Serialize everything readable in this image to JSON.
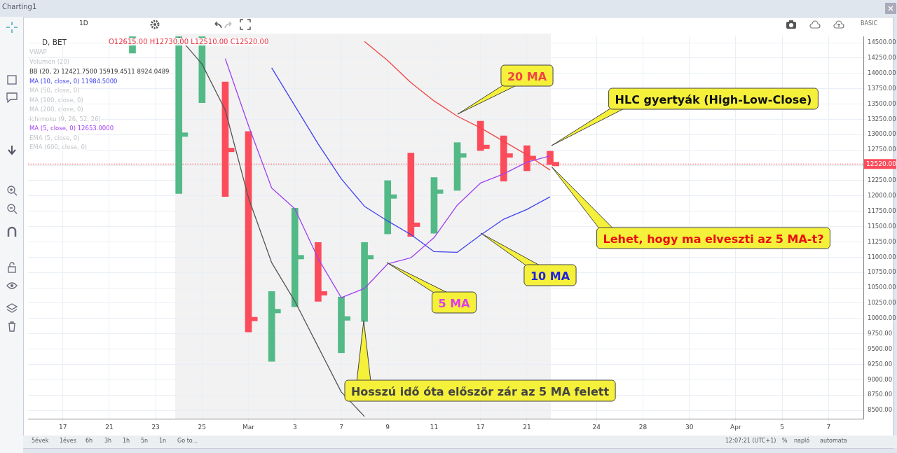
{
  "chart_data": {
    "type": "bar",
    "categories": [
      null,
      "17",
      null,
      "21",
      null,
      "23",
      null,
      "25",
      null,
      "Mar",
      null,
      "3",
      null,
      "7",
      null,
      "9",
      null,
      "11",
      null,
      "17",
      null,
      "21",
      null,
      null,
      "24",
      null,
      "28",
      null,
      "30",
      null,
      "Apr",
      null,
      "5",
      null,
      "7",
      null
    ],
    "series": [
      {
        "type": "bar",
        "base": [
          null,
          null,
          null,
          null,
          14330,
          null,
          12040,
          13520,
          11990,
          9780,
          9300,
          10190,
          10280,
          9440,
          9950,
          11380,
          11340,
          11390,
          12090,
          12740,
          12240,
          12410,
          12510,
          null,
          null,
          null,
          null,
          null,
          null,
          null,
          null,
          null,
          null,
          null,
          null,
          null
        ],
        "values": [
          null,
          null,
          null,
          null,
          272,
          null,
          2562,
          1082,
          1870,
          3270,
          1140,
          1610,
          960,
          910,
          1290,
          870,
          1360,
          910,
          780,
          480,
          740,
          410,
          220,
          null,
          null,
          null,
          null,
          null,
          null,
          null,
          null,
          null,
          null,
          null,
          null,
          null
        ],
        "colors": [
          null,
          null,
          null,
          null,
          "#53b987",
          null,
          "#53b987",
          "#53b987",
          "#fc4c5b",
          "#fc4c5b",
          "#53b987",
          "#53b987",
          "#fc4c5b",
          "#53b987",
          "#53b987",
          "#53b987",
          "#fc4c5b",
          "#53b987",
          "#53b987",
          "#fc4c5b",
          "#fc4c5b",
          "#fc4c5b",
          "#fc4c5b",
          null,
          null,
          null,
          null,
          null,
          null,
          null,
          null,
          null,
          null,
          null,
          null,
          null
        ]
      },
      {
        "type": "scatter",
        "marker": "square",
        "values": [
          null,
          null,
          null,
          null,
          null,
          null,
          13000,
          null,
          12750,
          9990,
          10120,
          11000,
          10410,
          10000,
          11000,
          11990,
          11530,
          12070,
          12660,
          12800,
          12660,
          12620,
          12520,
          null,
          null,
          null,
          null,
          null,
          null,
          null,
          null,
          null,
          null,
          null,
          null,
          null
        ],
        "colors": [
          null,
          null,
          null,
          null,
          null,
          null,
          "#53b987",
          null,
          "#fc4c5b",
          "#fc4c5b",
          "#53b987",
          "#53b987",
          "#fc4c5b",
          "#53b987",
          "#53b987",
          "#53b987",
          "#fc4c5b",
          "#53b987",
          "#53b987",
          "#fc4c5b",
          "#fc4c5b",
          "#fc4c5b",
          "#fc4c5b",
          null,
          null,
          null,
          null,
          null,
          null,
          null,
          null,
          null,
          null,
          null,
          null,
          null
        ]
      },
      {
        "type": "line",
        "color": "#a040f0",
        "values": [
          null,
          null,
          null,
          null,
          null,
          null,
          null,
          null,
          14240,
          13150,
          12130,
          11790,
          10980,
          10340,
          10490,
          10890,
          10990,
          11320,
          11850,
          12210,
          12360,
          12550,
          12653,
          null,
          null,
          null,
          null,
          null,
          null,
          null,
          null,
          null,
          null,
          null,
          null,
          null
        ]
      },
      {
        "type": "line",
        "color": "#4040f0",
        "values": [
          null,
          null,
          null,
          null,
          null,
          null,
          null,
          null,
          null,
          null,
          14090,
          13470,
          12850,
          12280,
          11830,
          11590,
          11370,
          11090,
          11080,
          11360,
          11620,
          11780,
          11984.5,
          null,
          null,
          null,
          null,
          null,
          null,
          null,
          null,
          null,
          null,
          null,
          null,
          null
        ]
      },
      {
        "type": "line",
        "color": "#f04545",
        "values": [
          null,
          null,
          null,
          null,
          null,
          null,
          null,
          null,
          null,
          null,
          null,
          null,
          null,
          null,
          14520,
          14210,
          13850,
          13550,
          13300,
          13110,
          12890,
          12670,
          12421.75,
          null,
          null,
          null,
          null,
          null,
          null,
          null,
          null,
          null,
          null,
          null,
          null,
          null
        ]
      },
      {
        "type": "line",
        "color": "#555555",
        "values": [
          null,
          null,
          null,
          null,
          null,
          null,
          14590,
          14150,
          13400,
          11970,
          10910,
          10280,
          9540,
          8800,
          8400,
          null,
          null,
          null,
          null,
          null,
          null,
          null,
          null,
          null,
          null,
          null,
          null,
          null,
          null,
          null,
          null,
          null,
          null,
          null,
          null,
          null
        ]
      }
    ],
    "ylim": [
      8364,
      14602
    ],
    "yticks": [
      {
        "value": 8500,
        "label": "8500.00"
      },
      {
        "value": 8750,
        "label": "8750.00"
      },
      {
        "value": 9000,
        "label": "9000.00"
      },
      {
        "value": 9250,
        "label": "9250.00"
      },
      {
        "value": 9500,
        "label": "9500.00"
      },
      {
        "value": 9750,
        "label": "9750.00"
      },
      {
        "value": 10000,
        "label": "10000.00"
      },
      {
        "value": 10250,
        "label": "10250.00"
      },
      {
        "value": 10500,
        "label": "10500.00"
      },
      {
        "value": 10750,
        "label": "10750.00"
      },
      {
        "value": 11000,
        "label": "11000.00"
      },
      {
        "value": 11250,
        "label": "11250.00"
      },
      {
        "value": 11500,
        "label": "11500.00"
      },
      {
        "value": 11750,
        "label": "11750.00"
      },
      {
        "value": 12000,
        "label": "12000.00"
      },
      {
        "value": 12250,
        "label": "12250.00"
      },
      {
        "value": 12500,
        "label": null
      },
      {
        "value": 12750,
        "label": "12750.00"
      },
      {
        "value": 13000,
        "label": "13000.00"
      },
      {
        "value": 13250,
        "label": "13250.00"
      },
      {
        "value": 13500,
        "label": "13500.00"
      },
      {
        "value": 13750,
        "label": "13750.00"
      },
      {
        "value": 14000,
        "label": "14000.00"
      },
      {
        "value": 14250,
        "label": "14250.00"
      },
      {
        "value": 14500,
        "label": "14500.00"
      }
    ],
    "ref_lines": [
      {
        "axis": "y",
        "value": 12520,
        "label": "12520.00",
        "color": "#fc4c5b",
        "line_style": "dotted"
      }
    ],
    "grid": true,
    "marker": "none",
    "annotations": [
      "20 MA",
      "HLC gyertyák (High-Low-Close)",
      "Lehet, hogy ma elveszti az 5 MA-t?",
      "10 MA",
      "5 MA",
      "Hosszú idő óta először zár az 5 MA felett",
      "Charting1",
      "1D",
      "D, BET",
      "O12615.00  H12730.00  L12510.00  C12520.00",
      "VWAP",
      "Volumen (20)",
      "BB (20, 2)  12421.7500  15919.4511  8924.0489",
      "MA (10, close, 0)  11984.5000",
      "MA (50, close, 0)",
      "MA (100, close, 0)",
      "MA (200, close, 0)",
      "Ichimoku (9, 26, 52, 26)",
      "MA (5, close, 0)  12653.0000",
      "EMA (5, close, 0)",
      "EMA (600, close, 0)",
      "BASIC",
      "5évek",
      "1éves",
      "6h",
      "3h",
      "1h",
      "5n",
      "1n",
      "Go to...",
      "12:07:21 (UTC+1)",
      "%",
      "napló",
      "automata"
    ]
  }
}
